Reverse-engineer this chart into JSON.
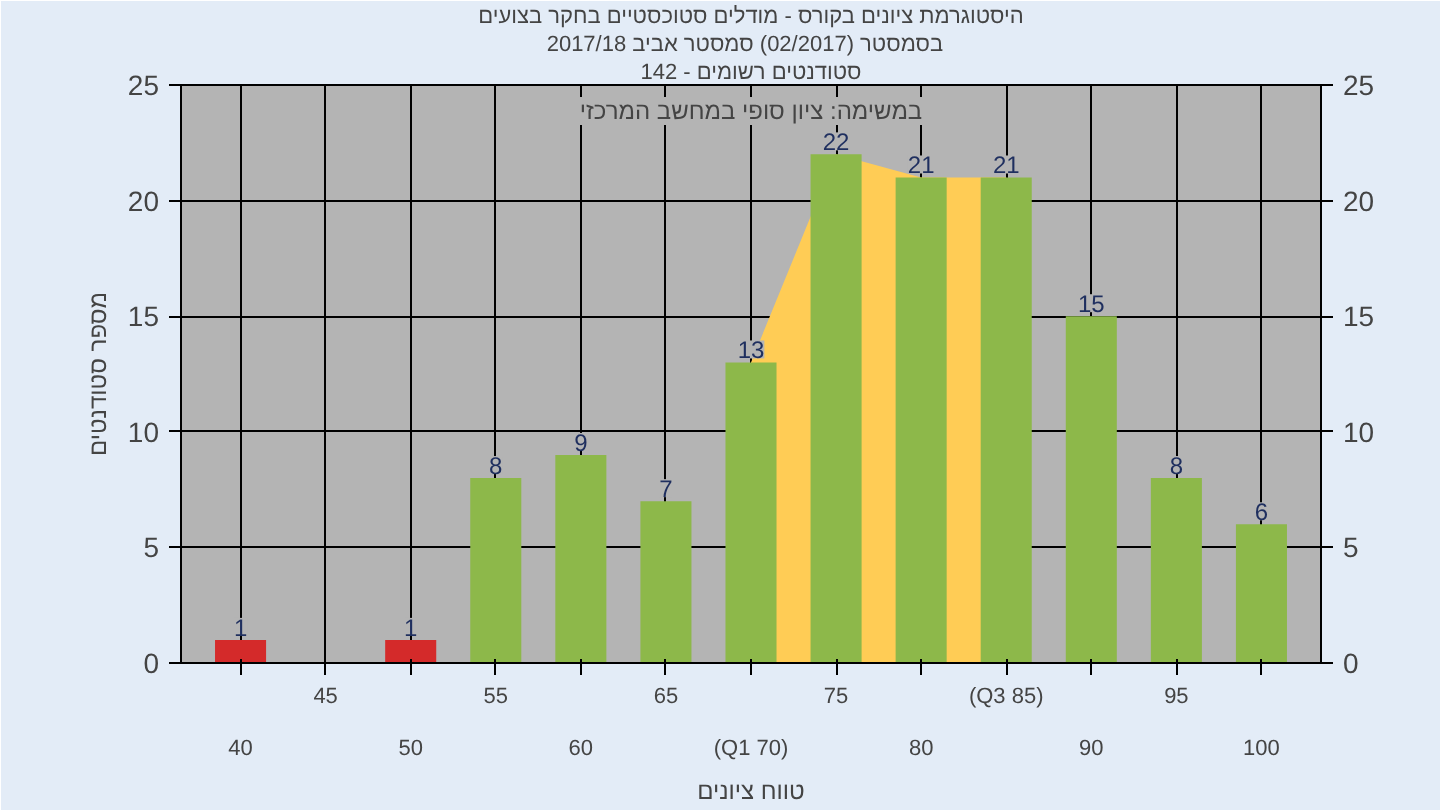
{
  "chart_data": {
    "type": "bar",
    "title": "היסטוגרמת ציונים בקורס - מודלים סטוכסטיים בחקר בצועים",
    "subtitle": "בסמסטר  (02/2017)  סמסטר אביב 2017/18",
    "xlabel": "טווח ציונים",
    "ylabel": "מספר סטודנטים",
    "annotations": [
      "סטודנטים רשומים - 142",
      "במשימה: ציון סופי במחשב המרכזי"
    ],
    "categories": [
      "40",
      "45",
      "50",
      "55",
      "60",
      "65",
      "(Q1 70)",
      "75",
      "80",
      "(Q3 85)",
      "90",
      "95",
      "100"
    ],
    "series": [
      {
        "type": "area",
        "color": "#ffcc55",
        "values": [
          null,
          null,
          null,
          null,
          null,
          null,
          13,
          22,
          21,
          21,
          null,
          null,
          null
        ]
      },
      {
        "colors": [
          "#d42a2a",
          "#d42a2a",
          "#d42a2a",
          "#8db84a",
          "#8db84a",
          "#8db84a",
          "#8db84a",
          "#8db84a",
          "#8db84a",
          "#8db84a",
          "#8db84a",
          "#8db84a",
          "#8db84a"
        ],
        "values": [
          1,
          null,
          1,
          8,
          9,
          7,
          13,
          22,
          21,
          21,
          15,
          8,
          6
        ],
        "value_labels": [
          "1",
          null,
          "1",
          "8",
          "9",
          "7",
          "13",
          "22",
          "21",
          "21",
          "15",
          "8",
          "6"
        ]
      }
    ],
    "ylim": [
      0,
      25
    ],
    "yticks": [
      0,
      5,
      10,
      15,
      20,
      25
    ],
    "y2lim": [
      0,
      25
    ],
    "y2ticks": [
      0,
      5,
      10,
      15,
      20,
      25
    ],
    "grid": true
  }
}
